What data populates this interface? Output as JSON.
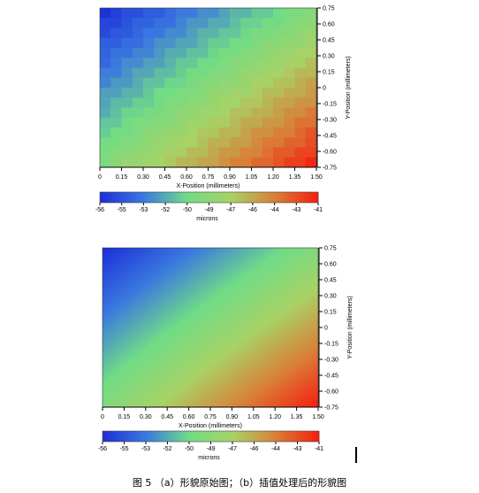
{
  "chart_data": [
    {
      "type": "heatmap",
      "panel": "a",
      "title": "",
      "xlabel": "X-Position (millimeters)",
      "ylabel": "Y-Position (millimeters)",
      "x_ticks": [
        "0",
        "0.15",
        "0.30",
        "0.45",
        "0.60",
        "0.75",
        "0.90",
        "1.05",
        "1.20",
        "1.35",
        "1.50"
      ],
      "y_ticks": [
        "0.75",
        "0.60",
        "0.45",
        "0.30",
        "0.15",
        "0",
        "-0.15",
        "-0.30",
        "-0.45",
        "-0.60",
        "-0.75"
      ],
      "xlim": [
        0,
        1.5
      ],
      "ylim": [
        -0.75,
        0.75
      ],
      "grid": {
        "nx": 20,
        "ny": 16,
        "pixelated": true
      },
      "z_corners": {
        "top_left": -56,
        "top_right": -49,
        "bottom_left": -49,
        "bottom_right": -41
      },
      "colorbar": {
        "label": "microns",
        "ticks": [
          "-56",
          "-55",
          "-53",
          "-52",
          "-50",
          "-49",
          "-47",
          "-46",
          "-44",
          "-43",
          "-41"
        ],
        "range": [
          -56,
          -41
        ],
        "colors": [
          "#1c2ed8",
          "#3a78e0",
          "#70dc86",
          "#a8d266",
          "#d98038",
          "#f51d10"
        ]
      }
    },
    {
      "type": "heatmap",
      "panel": "b",
      "title": "",
      "xlabel": "X-Position (millimeters)",
      "ylabel": "Y-Position (millimeters)",
      "x_ticks": [
        "0",
        "0.15",
        "0.30",
        "0.45",
        "0.60",
        "0.75",
        "0.90",
        "1.05",
        "1.20",
        "1.35",
        "1.50"
      ],
      "y_ticks": [
        "0.75",
        "0.60",
        "0.45",
        "0.30",
        "0.15",
        "0",
        "-0.15",
        "-0.30",
        "-0.45",
        "-0.60",
        "-0.75"
      ],
      "xlim": [
        0,
        1.5
      ],
      "ylim": [
        -0.75,
        0.75
      ],
      "grid": {
        "nx": 100,
        "ny": 80,
        "pixelated": false
      },
      "z_corners": {
        "top_left": -56,
        "top_right": -49,
        "bottom_left": -49,
        "bottom_right": -41
      },
      "colorbar": {
        "label": "microns",
        "ticks": [
          "-56",
          "-55",
          "-53",
          "-52",
          "-50",
          "-49",
          "-47",
          "-46",
          "-44",
          "-43",
          "-41"
        ],
        "range": [
          -56,
          -41
        ],
        "colors": [
          "#1c2ed8",
          "#3a78e0",
          "#70dc86",
          "#a8d266",
          "#d98038",
          "#f51d10"
        ]
      }
    }
  ],
  "caption": "图 5 （a）形貌原始图；（b）插值处理后的形貌图"
}
